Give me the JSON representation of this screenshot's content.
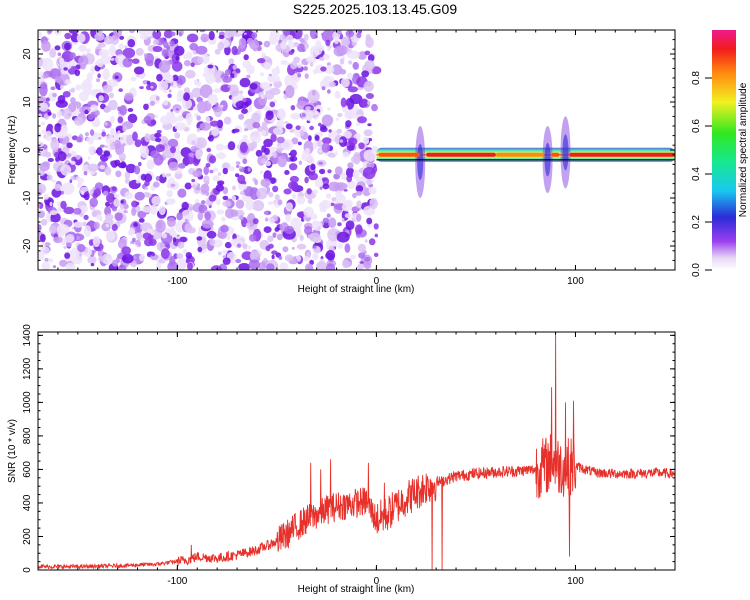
{
  "title": "S225.2025.103.13.45.G09",
  "chart_data": [
    {
      "type": "heatmap",
      "xlabel": "Height of straight line (km)",
      "ylabel": "Frequency (Hz)",
      "xlim": [
        -170,
        150
      ],
      "ylim": [
        -25,
        25
      ],
      "x_ticks": [
        -100,
        0,
        100
      ],
      "y_ticks": [
        -20,
        -10,
        0,
        10,
        20
      ],
      "noise_region_x": [
        -170,
        0
      ],
      "signal_band": {
        "x_range": [
          0,
          150
        ],
        "center_frequency": -1,
        "segments": [
          {
            "x_start": 1,
            "x_end": 22,
            "amplitude": 0.9
          },
          {
            "x_start": 25,
            "x_end": 60,
            "amplitude": 0.95
          },
          {
            "x_start": 60,
            "x_end": 84,
            "amplitude": 0.75
          },
          {
            "x_start": 88,
            "x_end": 92,
            "amplitude": 0.85
          },
          {
            "x_start": 97,
            "x_end": 150,
            "amplitude": 0.95
          }
        ],
        "disturbances": [
          {
            "x": 22,
            "f_min": -10,
            "f_max": 5
          },
          {
            "x": 86,
            "f_min": -9,
            "f_max": 5
          },
          {
            "x": 95,
            "f_min": -8,
            "f_max": 7
          }
        ]
      },
      "colorbar": {
        "label": "Normalized spectral amplitude",
        "ticks": [
          "0.0",
          "0.2",
          "0.4",
          "0.6",
          "0.8"
        ],
        "range": [
          0,
          1
        ]
      }
    },
    {
      "type": "line",
      "xlabel": "Height of straight line (km)",
      "ylabel": "SNR (10 * v/v)",
      "xlim": [
        -170,
        150
      ],
      "ylim": [
        0,
        1420
      ],
      "x_ticks": [
        -100,
        0,
        100
      ],
      "y_ticks": [
        0,
        200,
        400,
        600,
        800,
        1000,
        1200,
        1400
      ],
      "color": "#e8302a",
      "series": [
        {
          "x": [
            -170,
            -150,
            -130,
            -110,
            -95,
            -90,
            -80,
            -70,
            -60,
            -50,
            -45,
            -40,
            -35,
            -30,
            -25,
            -20,
            -15,
            -10,
            -5,
            0,
            5,
            10,
            15,
            20,
            25,
            30,
            35,
            40,
            50,
            60,
            70,
            80,
            85,
            88,
            90,
            95,
            100,
            105,
            110,
            120,
            130,
            140,
            150
          ],
          "values": [
            20,
            20,
            25,
            35,
            60,
            80,
            70,
            90,
            120,
            170,
            210,
            260,
            300,
            330,
            360,
            380,
            390,
            400,
            410,
            300,
            330,
            380,
            430,
            460,
            500,
            520,
            540,
            560,
            575,
            585,
            590,
            600,
            620,
            650,
            630,
            610,
            620,
            600,
            580,
            575,
            575,
            580,
            575
          ]
        }
      ],
      "spikes": [
        {
          "x": -93,
          "y": 150
        },
        {
          "x": -33,
          "y": 640
        },
        {
          "x": -28,
          "y": 600
        },
        {
          "x": -23,
          "y": 660
        },
        {
          "x": -4,
          "y": 640
        },
        {
          "x": 4,
          "y": 520
        },
        {
          "x": 28,
          "y": 0
        },
        {
          "x": 33,
          "y": 0
        },
        {
          "x": 90,
          "y": 1420
        },
        {
          "x": 88,
          "y": 1090
        },
        {
          "x": 95,
          "y": 1000
        },
        {
          "x": 99,
          "y": 1010
        },
        {
          "x": 97,
          "y": 80
        }
      ]
    }
  ]
}
